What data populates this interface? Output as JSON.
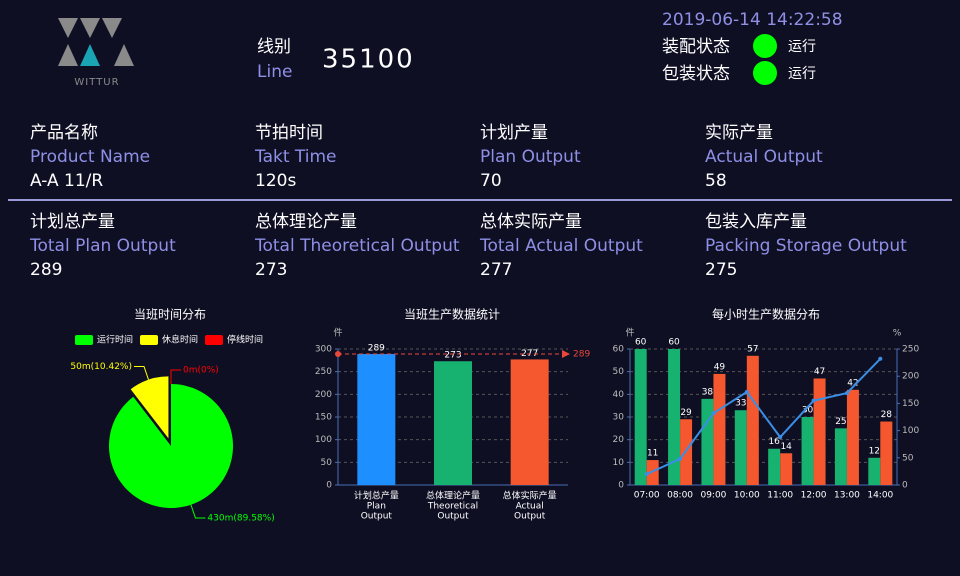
{
  "header": {
    "logo": "WITTUR",
    "line_label_cn": "线别",
    "line_label_en": "Line",
    "line_value": 35100,
    "datetime": "2019-06-14 14:22:58",
    "statuses": [
      {
        "label": "装配状态",
        "value": "运行",
        "color": "#00ff00"
      },
      {
        "label": "包装状态",
        "value": "运行",
        "color": "#00ff00"
      }
    ]
  },
  "kpis": [
    [
      {
        "cn": "产品名称",
        "en": "Product Name",
        "value": "A-A 11/R"
      },
      {
        "cn": "节拍时间",
        "en": "Takt Time",
        "value": "120s"
      },
      {
        "cn": "计划产量",
        "en": "Plan Output",
        "value": 70
      },
      {
        "cn": "实际产量",
        "en": "Actual Output",
        "value": 58
      }
    ],
    [
      {
        "cn": "计划总产量",
        "en": "Total Plan Output",
        "value": 289
      },
      {
        "cn": "总体理论产量",
        "en": "Total Theoretical Output",
        "value": 273
      },
      {
        "cn": "总体实际产量",
        "en": "Total Actual Output",
        "value": 277
      },
      {
        "cn": "包装入库产量",
        "en": "Packing Storage Output",
        "value": 275
      }
    ]
  ],
  "chart_data": [
    {
      "type": "pie",
      "title": "当班时间分布",
      "categories": [
        "运行时间",
        "休息时间",
        "停线时间"
      ],
      "values": [
        430,
        50,
        0
      ],
      "value_labels": [
        "430m(89.58%)",
        "50m(10.42%)",
        "0m(0%)"
      ],
      "colors": [
        "#00ff00",
        "#ffff00",
        "#ff0000"
      ],
      "legend": "top"
    },
    {
      "type": "bar",
      "title": "当班生产数据统计",
      "y_label": "件",
      "categories": [
        [
          "计划总产量",
          "Plan",
          "Output"
        ],
        [
          "总体理论产量",
          "Theoretical",
          "Output"
        ],
        [
          "总体实际产量",
          "Actual",
          "Output"
        ]
      ],
      "values": [
        289,
        273,
        277
      ],
      "colors": [
        "#1e8fff",
        "#17b26f",
        "#f5582f"
      ],
      "ylim": [
        0,
        300
      ],
      "yticks": [
        0,
        50,
        100,
        150,
        200,
        250,
        300
      ],
      "grid": true,
      "mark_line": {
        "value": 289,
        "color": "#e8483a"
      }
    },
    {
      "type": "combo",
      "title": "每小时生产数据分布",
      "y_label": "件",
      "y2_label": "%",
      "categories": [
        "07:00",
        "08:00",
        "09:00",
        "10:00",
        "11:00",
        "12:00",
        "13:00",
        "14:00"
      ],
      "series": [
        {
          "type": "bar",
          "color": "#17b26f",
          "values": [
            60,
            60,
            38,
            33,
            16,
            30,
            25,
            12
          ]
        },
        {
          "type": "bar",
          "color": "#f5582f",
          "values": [
            11,
            29,
            49,
            57,
            14,
            47,
            42,
            28
          ]
        },
        {
          "type": "line",
          "axis": "y2",
          "color": "#3a8ee6",
          "values": [
            20,
            48,
            132,
            171,
            88,
            155,
            169,
            232
          ]
        }
      ],
      "ylim": [
        0,
        60
      ],
      "yticks": [
        0,
        10,
        20,
        30,
        40,
        50,
        60
      ],
      "y2lim": [
        0,
        250
      ],
      "y2ticks": [
        0,
        50,
        100,
        150,
        200,
        250
      ],
      "grid": true
    }
  ]
}
